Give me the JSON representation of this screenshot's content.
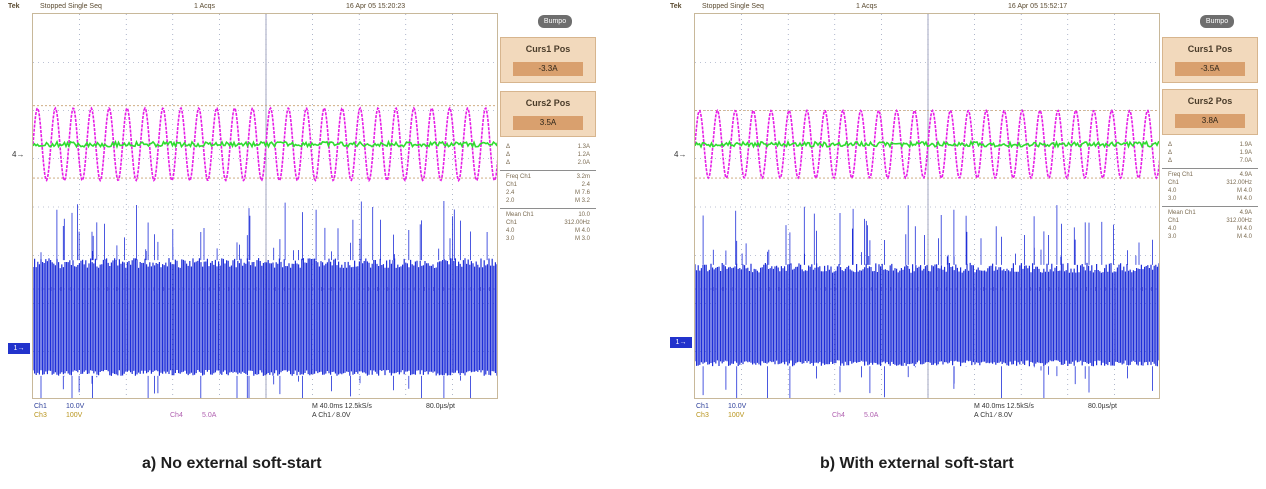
{
  "panels": [
    {
      "topbar": {
        "brand": "Tek",
        "status": "Stopped Single Seq",
        "time_base": "1 Acqs",
        "date": "16 Apr 05 15:20:23"
      },
      "menu_button": "Bumpo",
      "cursor1": {
        "label": "Curs1 Pos",
        "value": "-3.3A"
      },
      "cursor2": {
        "label": "Curs2 Pos",
        "value": "3.5A"
      },
      "readout_rows": [
        [
          "Δ",
          "1.3A"
        ],
        [
          "Δ",
          "1.2A"
        ],
        [
          "Δ",
          "2.0A"
        ]
      ],
      "math_rows": [
        [
          "Freq Ch1",
          "3.2m"
        ],
        [
          "Ch1",
          "2.4"
        ],
        [
          "2.4",
          "M  7.6"
        ],
        [
          "2.0",
          "M  3.2"
        ]
      ],
      "meas_rows": [
        [
          "Mean Ch1",
          "10.0"
        ],
        [
          "Ch1",
          "312.00Hz"
        ],
        [
          "4.0",
          "M  4.0"
        ],
        [
          "3.0",
          "M  3.0"
        ]
      ],
      "bottom": {
        "ch1": "Ch1",
        "ch1_scale": "10.0V",
        "ch2": "Ch3",
        "ch2_scale": "100V",
        "ch4": "Ch4",
        "ch4_scale": "5.0A",
        "timebase": "M 40.0ms 12.5kS/s",
        "sample": "80.0µs/pt",
        "trigger": "A  Ch1  ∕  8.0V"
      },
      "ch1_marker": "1→",
      "ch4_marker": "4→",
      "caption": "a) No external soft-start"
    },
    {
      "topbar": {
        "brand": "Tek",
        "status": "Stopped Single Seq",
        "time_base": "1 Acqs",
        "date": "16 Apr 05 15:52:17"
      },
      "menu_button": "Bumpo",
      "cursor1": {
        "label": "Curs1 Pos",
        "value": "-3.5A"
      },
      "cursor2": {
        "label": "Curs2 Pos",
        "value": "3.8A"
      },
      "readout_rows": [
        [
          "Δ",
          "1.9A"
        ],
        [
          "Δ",
          "1.9A"
        ],
        [
          "Δ",
          "7.0A"
        ]
      ],
      "math_rows": [
        [
          "Freq Ch1",
          "4.9A"
        ],
        [
          "Ch1",
          "312.00Hz"
        ],
        [
          "4.0",
          "M  4.0"
        ],
        [
          "3.0",
          "M  4.0"
        ]
      ],
      "meas_rows": [
        [
          "Mean Ch1",
          "4.9A"
        ],
        [
          "Ch1",
          "312.00Hz"
        ],
        [
          "4.0",
          "M  4.0"
        ],
        [
          "3.0",
          "M  4.0"
        ]
      ],
      "bottom": {
        "ch1": "Ch1",
        "ch1_scale": "10.0V",
        "ch2": "Ch3",
        "ch2_scale": "100V",
        "ch4": "Ch4",
        "ch4_scale": "5.0A",
        "timebase": "M 40.0ms 12.5kS/s",
        "sample": "80.0µs/pt",
        "trigger": "A  Ch1  ∕  8.0V"
      },
      "ch1_marker": "1→",
      "ch4_marker": "4→",
      "caption": "b) With external soft-start"
    }
  ],
  "colors": {
    "ch1": "#1f2fd8",
    "ch3": "#2fdc2f",
    "ch4": "#e61ee6",
    "grid": "#7a86a8",
    "dotted": "#a090d0"
  },
  "chart_data": [
    {
      "type": "line",
      "title": "",
      "xlabel": "",
      "ylabel": "",
      "grid": true,
      "x_divisions": 10,
      "y_divisions": 8,
      "series": [
        {
          "name": "Ch1",
          "description_values": {
            "baseline_div": -2.3,
            "burst_top_div": -1.1,
            "burst_bottom_div": -3.5
          }
        },
        {
          "name": "Ch3",
          "description_values": {
            "level_div": 1.3
          }
        },
        {
          "name": "Ch4",
          "description_values": {
            "center_div": 1.3,
            "peak_div": 2.1,
            "trough_div": 0.6,
            "cycles": 26
          }
        }
      ]
    },
    {
      "type": "line",
      "title": "",
      "xlabel": "",
      "ylabel": "",
      "grid": true,
      "x_divisions": 10,
      "y_divisions": 8,
      "series": [
        {
          "name": "Ch1",
          "description_values": {
            "baseline_div": -2.3,
            "burst_top_div": -1.2,
            "burst_bottom_div": -3.3
          }
        },
        {
          "name": "Ch3",
          "description_values": {
            "level_div": 1.3
          }
        },
        {
          "name": "Ch4",
          "description_values": {
            "center_div": 1.3,
            "peak_div": 2.0,
            "trough_div": 0.6,
            "cycles": 26
          }
        }
      ]
    }
  ]
}
